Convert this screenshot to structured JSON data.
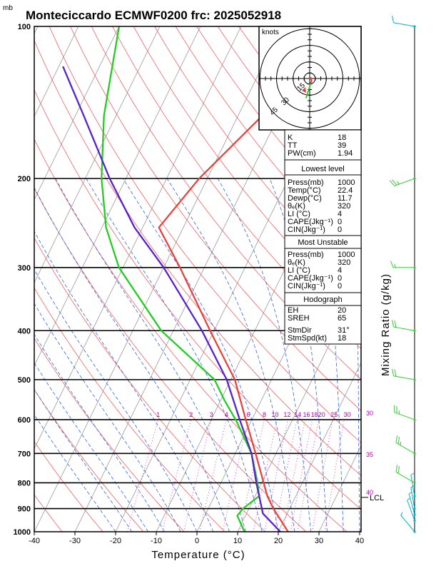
{
  "header": {
    "title": "Monteciccardo ECMWF0200  frc: 2025052918",
    "pressure_unit": "mb"
  },
  "axes": {
    "xlabel": "Temperature (°C)",
    "right_label": "Mixing Ratio (g/kg)",
    "x_ticks": [
      "-40",
      "-30",
      "-20",
      "-10",
      "0",
      "10",
      "20",
      "30",
      "40"
    ],
    "y_ticks": [
      "100",
      "200",
      "300",
      "400",
      "500",
      "600",
      "700",
      "800",
      "900",
      "1000"
    ],
    "mixing_ratio_labels": [
      "1",
      "2",
      "3",
      "4",
      "6",
      "8",
      "10",
      "12",
      "14",
      "16",
      "18",
      "20",
      "25",
      "30"
    ],
    "theta_e_labels": [
      "30",
      "35",
      "40"
    ],
    "lcl_label": "LCL"
  },
  "hodograph": {
    "unit_label": "knots",
    "ring_labels": [
      "15",
      "30",
      "45"
    ]
  },
  "indices": {
    "top": [
      {
        "key": "K",
        "value": "18"
      },
      {
        "key": "TT",
        "value": "39"
      },
      {
        "key": "PW(cm)",
        "value": "1.94"
      }
    ],
    "lowest_title": "Lowest level",
    "lowest": [
      {
        "key": "Press(mb)",
        "value": "1000"
      },
      {
        "key": "Temp(°C)",
        "value": "22.4"
      },
      {
        "key": "Dewp(°C)",
        "value": "11.7"
      },
      {
        "key": "θₑ(K)",
        "value": "320"
      },
      {
        "key": "LI  (°C)",
        "value": "4"
      },
      {
        "key": "CAPE(Jkg⁻¹)",
        "value": "0"
      },
      {
        "key": "CIN(Jkg⁻¹)",
        "value": "0"
      }
    ],
    "mu_title": "Most Unstable",
    "mu": [
      {
        "key": "Press(mb)",
        "value": "1000"
      },
      {
        "key": "θₑ(K)",
        "value": "320"
      },
      {
        "key": "LI  (°C)",
        "value": "4"
      },
      {
        "key": "CAPE(Jkg⁻¹)",
        "value": "0"
      },
      {
        "key": "CIN(Jkg⁻¹)",
        "value": "0"
      }
    ],
    "hodo_title": "Hodograph",
    "hodo": [
      {
        "key": "EH",
        "value": "20"
      },
      {
        "key": "SREH",
        "value": "65"
      },
      {
        "key": "StmDir",
        "value": "31°"
      },
      {
        "key": "StmSpd(kt)",
        "value": "18"
      }
    ]
  },
  "colors": {
    "temperature": "#e8423c",
    "dewpoint": "#22cc22",
    "parcel": "#5522cc",
    "isotherm": "#999999",
    "dry_adiabat": "#f06060",
    "moist_adiabat": "#3366dd",
    "mixing_ratio": "#cc33cc",
    "wind": "#00b4c8",
    "wind_upper": "#33cc33"
  },
  "chart_data": {
    "type": "line",
    "title": "Monteciccardo ECMWF0200  frc: 2025052918",
    "xlabel": "Temperature (°C)",
    "ylabel": "",
    "xlim": [
      -40,
      40
    ],
    "ylim": [
      1000,
      100
    ],
    "y_scale": "log",
    "skew": "skew-T log-p",
    "series": [
      {
        "key": "temperature",
        "points": [
          [
            1000,
            22.4
          ],
          [
            900,
            16
          ],
          [
            850,
            13
          ],
          [
            800,
            10.5
          ],
          [
            700,
            5
          ],
          [
            600,
            -1.5
          ],
          [
            500,
            -9
          ],
          [
            400,
            -21
          ],
          [
            300,
            -36
          ],
          [
            250,
            -46
          ],
          [
            200,
            -42
          ],
          [
            150,
            -34
          ],
          [
            100,
            -24
          ]
        ]
      },
      {
        "key": "dewpoint",
        "points": [
          [
            1000,
            11.7
          ],
          [
            930,
            8
          ],
          [
            900,
            8.5
          ],
          [
            850,
            11
          ],
          [
            800,
            9
          ],
          [
            700,
            4
          ],
          [
            600,
            -4
          ],
          [
            550,
            -9
          ],
          [
            500,
            -14
          ],
          [
            400,
            -33
          ],
          [
            300,
            -51
          ],
          [
            250,
            -59
          ],
          [
            200,
            -66
          ],
          [
            150,
            -73
          ],
          [
            100,
            -80
          ]
        ]
      },
      {
        "key": "parcel",
        "points": [
          [
            1000,
            20.5
          ],
          [
            920,
            14
          ],
          [
            850,
            11
          ],
          [
            800,
            8.7
          ],
          [
            700,
            4
          ],
          [
            600,
            -3
          ],
          [
            500,
            -11
          ],
          [
            400,
            -23
          ],
          [
            300,
            -40
          ],
          [
            250,
            -52
          ],
          [
            200,
            -64
          ],
          [
            150,
            -78
          ],
          [
            120,
            -89
          ]
        ]
      }
    ],
    "wind_barbs": [
      {
        "p": 1000,
        "dir": 320,
        "spd": 5
      },
      {
        "p": 950,
        "dir": 340,
        "spd": 5
      },
      {
        "p": 925,
        "dir": 345,
        "spd": 5
      },
      {
        "p": 900,
        "dir": 350,
        "spd": 5
      },
      {
        "p": 850,
        "dir": 350,
        "spd": 5
      },
      {
        "p": 800,
        "dir": 300,
        "spd": 20
      },
      {
        "p": 700,
        "dir": 300,
        "spd": 25
      },
      {
        "p": 600,
        "dir": 290,
        "spd": 25
      },
      {
        "p": 500,
        "dir": 280,
        "spd": 20
      },
      {
        "p": 400,
        "dir": 280,
        "spd": 20
      },
      {
        "p": 300,
        "dir": 270,
        "spd": 15
      },
      {
        "p": 200,
        "dir": 250,
        "spd": 25
      },
      {
        "p": 100,
        "dir": 280,
        "spd": 10
      }
    ],
    "hodograph_points": [
      [
        0,
        0
      ],
      [
        2,
        -1
      ],
      [
        3,
        4
      ],
      [
        1,
        9
      ],
      [
        -2,
        20
      ],
      [
        -6,
        32
      ]
    ]
  }
}
